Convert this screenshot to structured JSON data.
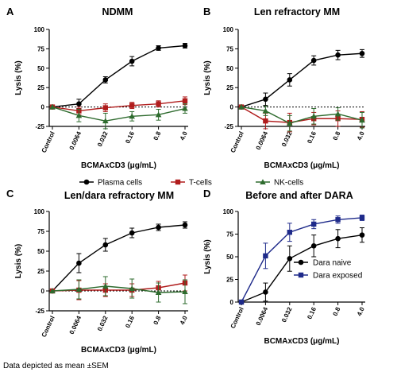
{
  "categories": [
    "Control",
    "0.0064",
    "0.032",
    "0.16",
    "0.8",
    "4.0"
  ],
  "shared_legend": [
    "Plasma cells",
    "T-cells",
    "NK-cells"
  ],
  "footnote": "Data depicted as mean ±SEM",
  "colors": {
    "plasma": "#000000",
    "tcell": "#b01c1c",
    "nk": "#2e6b2e",
    "naive": "#000000",
    "exposed": "#1e2a8a",
    "axis": "#000000"
  },
  "chart_data": [
    {
      "panel": "A",
      "type": "line",
      "title": "NDMM",
      "xlabel": "BCMAxCD3 (μg/mL)",
      "ylabel": "Lysis (%)",
      "ylim": [
        -25,
        100
      ],
      "yticks": [
        -25,
        0,
        25,
        50,
        75,
        100
      ],
      "categories": [
        "Control",
        "0.0064",
        "0.032",
        "0.16",
        "0.8",
        "4.0"
      ],
      "series": [
        {
          "name": "Plasma cells",
          "marker": "circle",
          "color": "#000000",
          "values": [
            0,
            4,
            35,
            59,
            76,
            79
          ],
          "err": [
            0,
            6,
            4,
            6,
            3,
            3
          ]
        },
        {
          "name": "T-cells",
          "marker": "square",
          "color": "#b01c1c",
          "values": [
            0,
            -5,
            -1,
            2,
            4,
            8
          ],
          "err": [
            0,
            5,
            5,
            4,
            4,
            5
          ]
        },
        {
          "name": "NK-cells",
          "marker": "triangle",
          "color": "#2e6b2e",
          "values": [
            0,
            -11,
            -18,
            -12,
            -10,
            -2
          ],
          "err": [
            0,
            8,
            10,
            6,
            7,
            6
          ]
        }
      ]
    },
    {
      "panel": "B",
      "type": "line",
      "title": "Len refractory MM",
      "xlabel": "BCMAxCD3 (μg/mL)",
      "ylabel": "Lysis (%)",
      "ylim": [
        -25,
        100
      ],
      "yticks": [
        -25,
        0,
        25,
        50,
        75,
        100
      ],
      "categories": [
        "Control",
        "0.0064",
        "0.032",
        "0.16",
        "0.8",
        "4.0"
      ],
      "series": [
        {
          "name": "Plasma cells",
          "marker": "circle",
          "color": "#000000",
          "values": [
            0,
            10,
            35,
            60,
            67,
            69
          ],
          "err": [
            0,
            8,
            8,
            6,
            6,
            5
          ]
        },
        {
          "name": "T-cells",
          "marker": "square",
          "color": "#b01c1c",
          "values": [
            0,
            -18,
            -20,
            -15,
            -15,
            -16
          ],
          "err": [
            0,
            10,
            12,
            8,
            10,
            10
          ]
        },
        {
          "name": "NK-cells",
          "marker": "triangle",
          "color": "#2e6b2e",
          "values": [
            0,
            -5,
            -21,
            -12,
            -9,
            -17
          ],
          "err": [
            0,
            6,
            10,
            10,
            8,
            10
          ]
        }
      ]
    },
    {
      "panel": "C",
      "type": "line",
      "title": "Len/dara refractory MM",
      "xlabel": "BCMAxCD3 (μg/mL)",
      "ylabel": "Lysis (%)",
      "ylim": [
        -25,
        100
      ],
      "yticks": [
        -25,
        0,
        25,
        50,
        75,
        100
      ],
      "categories": [
        "Control",
        "0.0064",
        "0.032",
        "0.16",
        "0.8",
        "4.0"
      ],
      "series": [
        {
          "name": "Plasma cells",
          "marker": "circle",
          "color": "#000000",
          "values": [
            0,
            35,
            58,
            73,
            80,
            83
          ],
          "err": [
            0,
            12,
            8,
            6,
            4,
            4
          ]
        },
        {
          "name": "T-cells",
          "marker": "square",
          "color": "#b01c1c",
          "values": [
            0,
            1,
            1,
            1,
            4,
            10
          ],
          "err": [
            0,
            12,
            8,
            8,
            8,
            10
          ]
        },
        {
          "name": "NK-cells",
          "marker": "triangle",
          "color": "#2e6b2e",
          "values": [
            0,
            2,
            6,
            3,
            -2,
            -1
          ],
          "err": [
            0,
            12,
            12,
            12,
            12,
            15
          ]
        }
      ]
    },
    {
      "panel": "D",
      "type": "line",
      "title": "Before and after DARA",
      "xlabel": "BCMAxCD3 (μg/mL)",
      "ylabel": "Lysis (%)",
      "ylim": [
        0,
        100
      ],
      "yticks": [
        0,
        25,
        50,
        75,
        100
      ],
      "categories": [
        "Control",
        "0.0064",
        "0.032",
        "0.16",
        "0.8",
        "4.0"
      ],
      "legend": [
        "Dara naive",
        "Dara exposed"
      ],
      "series": [
        {
          "name": "Dara naive",
          "marker": "circle",
          "color": "#000000",
          "values": [
            0,
            11,
            48,
            62,
            70,
            74
          ],
          "err": [
            0,
            10,
            14,
            12,
            10,
            8
          ]
        },
        {
          "name": "Dara exposed",
          "marker": "square",
          "color": "#1e2a8a",
          "values": [
            0,
            51,
            77,
            86,
            91,
            93
          ],
          "err": [
            0,
            14,
            10,
            5,
            4,
            3
          ]
        }
      ]
    }
  ]
}
